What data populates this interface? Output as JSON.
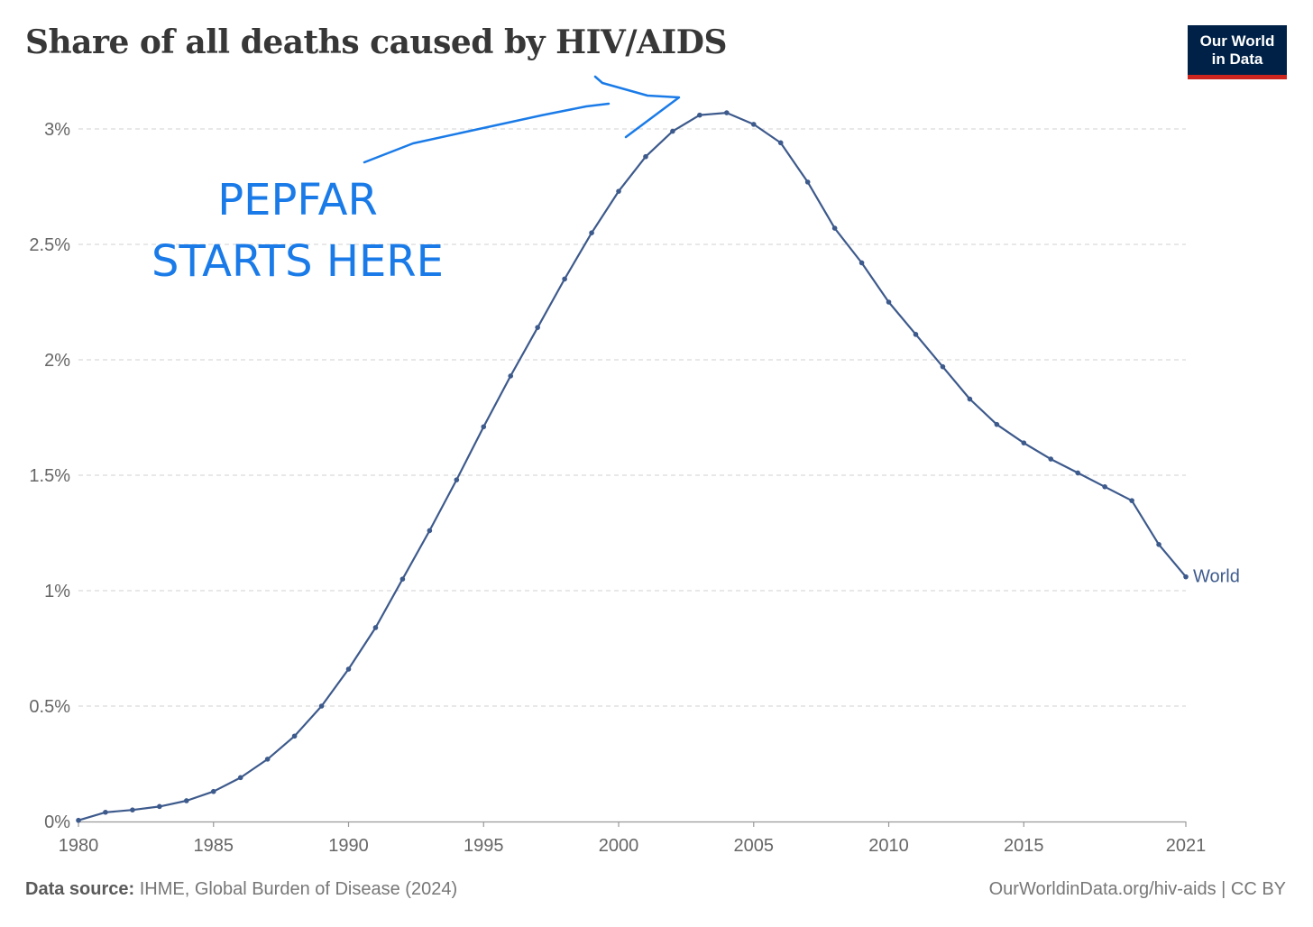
{
  "header": {
    "title": "Share of all deaths caused by HIV/AIDS",
    "logo_line1": "Our World",
    "logo_line2": "in Data"
  },
  "footer": {
    "source_label": "Data source:",
    "source_text": "IHME, Global Burden of Disease (2024)",
    "credit": "OurWorldinData.org/hiv-aids | CC BY"
  },
  "annotation": {
    "line1": "PEPFAR",
    "line2": "STARTS HERE",
    "color": "#1a7be8"
  },
  "chart_data": {
    "type": "line",
    "title": "Share of all deaths caused by HIV/AIDS",
    "xlim": [
      1980,
      2021
    ],
    "ylim": [
      0,
      3
    ],
    "x_ticks": [
      1980,
      1985,
      1990,
      1995,
      2000,
      2005,
      2010,
      2015,
      2021
    ],
    "x_tick_labels": [
      "1980",
      "1985",
      "1990",
      "1995",
      "2000",
      "2005",
      "2010",
      "2015",
      "2021"
    ],
    "y_ticks": [
      0,
      0.5,
      1,
      1.5,
      2,
      2.5,
      3
    ],
    "y_tick_labels": [
      "0%",
      "0.5%",
      "1%",
      "1.5%",
      "2%",
      "2.5%",
      "3%"
    ],
    "grid": true,
    "line_color": "#3d5a8c",
    "series": [
      {
        "name": "World",
        "x": [
          1980,
          1981,
          1982,
          1983,
          1984,
          1985,
          1986,
          1987,
          1988,
          1989,
          1990,
          1991,
          1992,
          1993,
          1994,
          1995,
          1996,
          1997,
          1998,
          1999,
          2000,
          2001,
          2002,
          2003,
          2004,
          2005,
          2006,
          2007,
          2008,
          2009,
          2010,
          2011,
          2012,
          2013,
          2014,
          2015,
          2016,
          2017,
          2018,
          2019,
          2020,
          2021
        ],
        "values": [
          0.005,
          0.04,
          0.05,
          0.065,
          0.09,
          0.13,
          0.19,
          0.27,
          0.37,
          0.5,
          0.66,
          0.84,
          1.05,
          1.26,
          1.48,
          1.71,
          1.93,
          2.14,
          2.35,
          2.55,
          2.73,
          2.88,
          2.99,
          3.06,
          3.07,
          3.02,
          2.94,
          2.77,
          2.57,
          2.42,
          2.25,
          2.11,
          1.97,
          1.83,
          1.72,
          1.64,
          1.57,
          1.51,
          1.45,
          1.39,
          1.2,
          1.06
        ]
      }
    ]
  }
}
